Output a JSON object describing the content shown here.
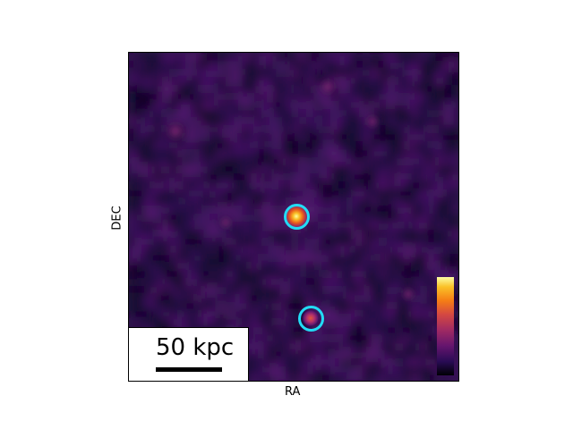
{
  "axes": {
    "xlabel": "RA",
    "ylabel": "DEC"
  },
  "scale_bar": {
    "label": "50 kpc"
  },
  "colormap": "inferno",
  "colors": {
    "background": "#2a0f45",
    "marker": "#22dcf5",
    "frame": "#000000"
  },
  "sources": [
    {
      "name": "bright-source",
      "circled": true
    },
    {
      "name": "faint-source",
      "circled": true
    }
  ]
}
